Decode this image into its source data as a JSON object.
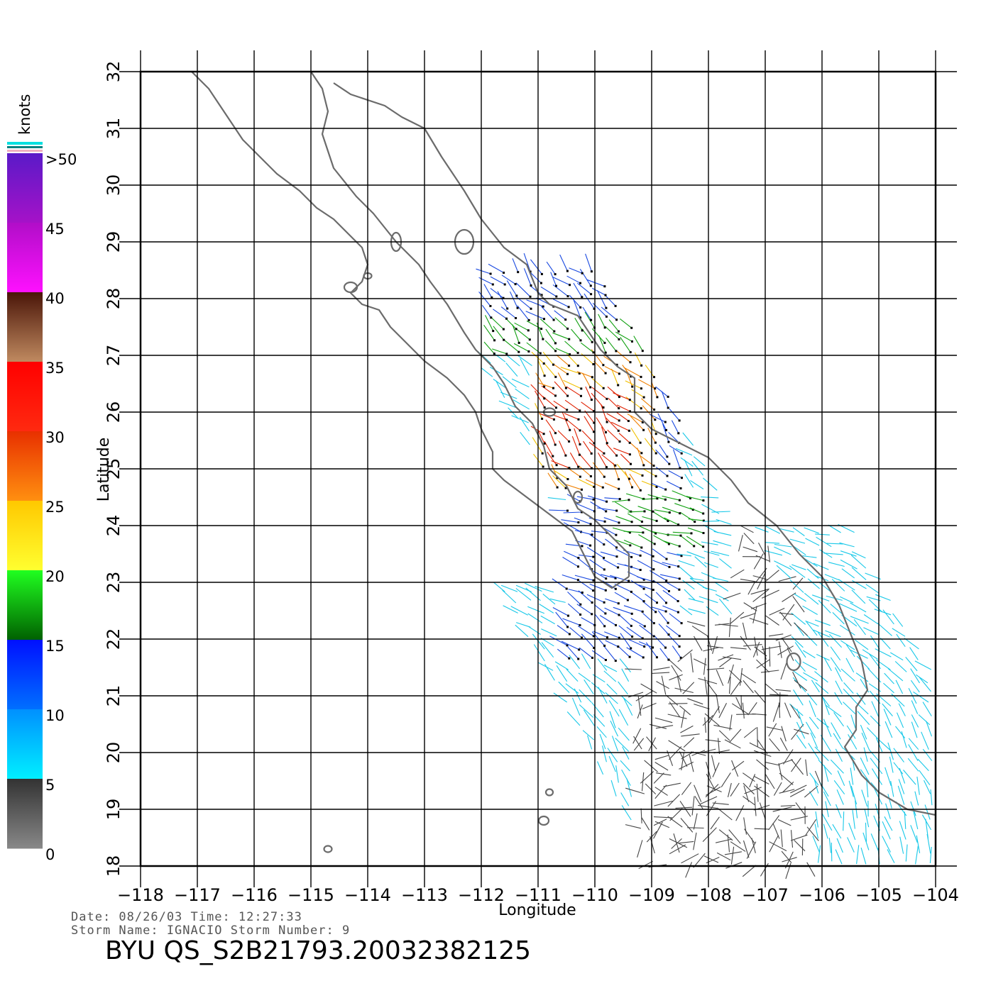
{
  "map": {
    "lon_ticks": [
      "-118",
      "-117",
      "-116",
      "-115",
      "-114",
      "-113",
      "-112",
      "-111",
      "-110",
      "-109",
      "-108",
      "-107",
      "-106",
      "-105",
      "-104"
    ],
    "lat_ticks": [
      "18",
      "19",
      "20",
      "21",
      "22",
      "23",
      "24",
      "25",
      "26",
      "27",
      "28",
      "29",
      "30",
      "31",
      "32"
    ],
    "x_axis_title": "Longitude",
    "y_axis_title": "Latitude",
    "lon_range": [
      -118,
      -104
    ],
    "lat_range": [
      18,
      32
    ],
    "coast_color": "#6b6b6b",
    "grid_color": "#000000"
  },
  "colorbar": {
    "unit": "knots",
    "labels": [
      ">50",
      "45",
      "40",
      "35",
      "30",
      "25",
      "20",
      "15",
      "10",
      "5",
      "0"
    ],
    "bands": [
      {
        "from": 45,
        "to": 50,
        "top": "#5a1ac8",
        "bottom": "#a612c8"
      },
      {
        "from": 40,
        "to": 45,
        "top": "#b10ec8",
        "bottom": "#ff10ff"
      },
      {
        "from": 35,
        "to": 40,
        "top": "#4a1508",
        "bottom": "#c08a60"
      },
      {
        "from": 30,
        "to": 35,
        "top": "#ff0000",
        "bottom": "#ff2a10"
      },
      {
        "from": 25,
        "to": 30,
        "top": "#e83000",
        "bottom": "#ff9010"
      },
      {
        "from": 20,
        "to": 25,
        "top": "#ffc800",
        "bottom": "#ffff30"
      },
      {
        "from": 15,
        "to": 20,
        "top": "#20ff20",
        "bottom": "#006000"
      },
      {
        "from": 10,
        "to": 15,
        "top": "#0010ff",
        "bottom": "#0070ff"
      },
      {
        "from": 5,
        "to": 10,
        "top": "#0090ff",
        "bottom": "#00f0ff"
      },
      {
        "from": 0,
        "to": 5,
        "top": "#333333",
        "bottom": "#888888"
      }
    ]
  },
  "footer": {
    "date_line": "Date: 08/26/03   Time: 12:27:33",
    "storm_line": "Storm Name: IGNACIO   Storm Number: 9",
    "product_id": "BYU QS_S2B21793.20032382125"
  },
  "wind_colors": {
    "calm": "#444444",
    "light": "#18c8e8",
    "moderate": "#1848e0",
    "fresh": "#10a010",
    "strong": "#f0c000",
    "gale": "#f08000",
    "storm": "#e02000"
  }
}
